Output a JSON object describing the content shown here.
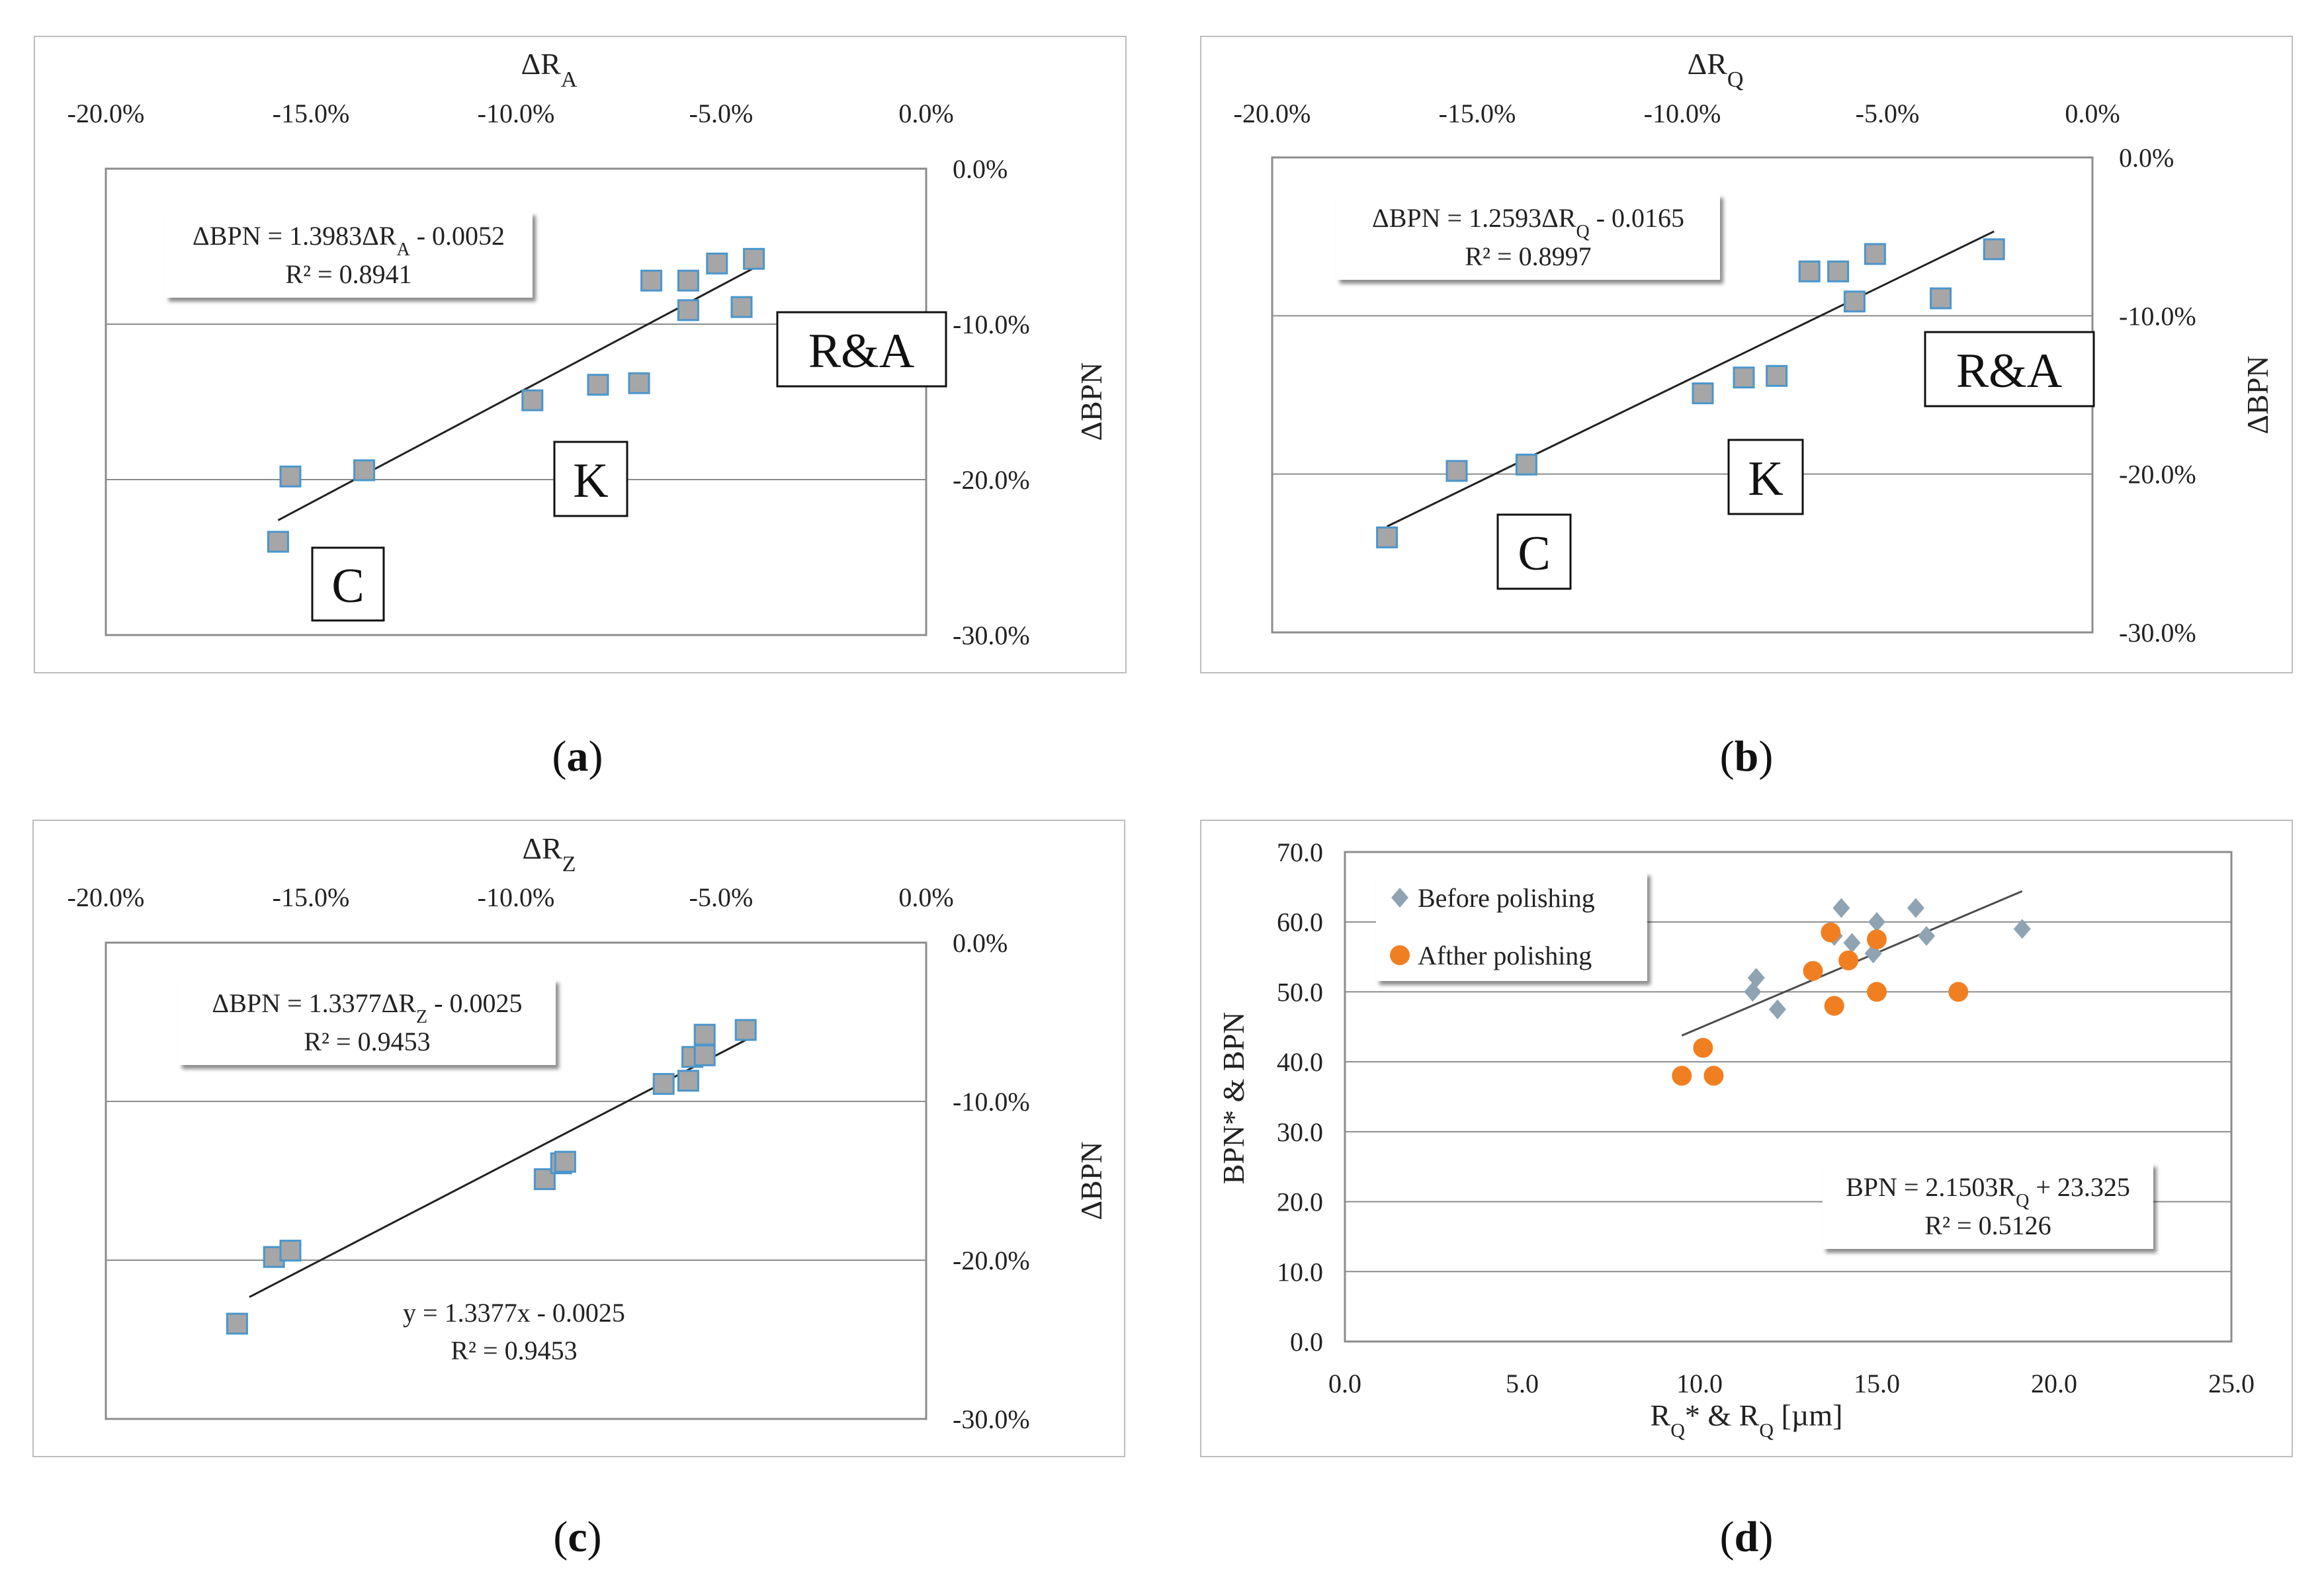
{
  "colors": {
    "marker_fill": "#a6a6a6",
    "marker_stroke": "#4a96cc",
    "before": "#8fa3b2",
    "after": "#f07f22",
    "grid": "#8c8c8c"
  },
  "chart_data": [
    {
      "id": "a",
      "type": "scatter",
      "panel_label": "(a)",
      "panel_letter": "a",
      "x_label": "ΔR",
      "x_sub": "A",
      "ylabel": "ΔBPN",
      "xlim": [
        -0.2,
        0.0
      ],
      "ylim": [
        -0.3,
        0.0
      ],
      "x_ticks": [
        "-20.0%",
        "-15.0%",
        "-10.0%",
        "-5.0%",
        "0.0%"
      ],
      "y_ticks": [
        "0.0%",
        "-10.0%",
        "-20.0%",
        "-30.0%"
      ],
      "points": [
        [
          -0.158,
          -0.24
        ],
        [
          -0.155,
          -0.198
        ],
        [
          -0.137,
          -0.194
        ],
        [
          -0.096,
          -0.149
        ],
        [
          -0.08,
          -0.139
        ],
        [
          -0.07,
          -0.138
        ],
        [
          -0.067,
          -0.072
        ],
        [
          -0.058,
          -0.072
        ],
        [
          -0.058,
          -0.091
        ],
        [
          -0.051,
          -0.061
        ],
        [
          -0.045,
          -0.089
        ],
        [
          -0.042,
          -0.058
        ]
      ],
      "trendline": {
        "x": [
          -0.158,
          -0.042
        ],
        "slope": 1.3983,
        "intercept": -0.0052
      },
      "equations": [
        {
          "line1_pre": "ΔBPN = 1.3983ΔR",
          "line1_sub": "A",
          "line1_post": " - 0.0052",
          "line2": "R² = 0.8941",
          "boxed": true
        }
      ],
      "region_labels": [
        "C",
        "K",
        "R&A"
      ]
    },
    {
      "id": "b",
      "type": "scatter",
      "panel_label": "(b)",
      "panel_letter": "b",
      "x_label": "ΔR",
      "x_sub": "Q",
      "ylabel": "ΔBPN",
      "xlim": [
        -0.2,
        0.0
      ],
      "ylim": [
        -0.3,
        0.0
      ],
      "x_ticks": [
        "-20.0%",
        "-15.0%",
        "-10.0%",
        "-5.0%",
        "0.0%"
      ],
      "y_ticks": [
        "0.0%",
        "-10.0%",
        "-20.0%",
        "-30.0%"
      ],
      "points": [
        [
          -0.172,
          -0.24
        ],
        [
          -0.155,
          -0.198
        ],
        [
          -0.138,
          -0.194
        ],
        [
          -0.095,
          -0.149
        ],
        [
          -0.085,
          -0.139
        ],
        [
          -0.077,
          -0.138
        ],
        [
          -0.069,
          -0.072
        ],
        [
          -0.062,
          -0.072
        ],
        [
          -0.058,
          -0.091
        ],
        [
          -0.053,
          -0.061
        ],
        [
          -0.037,
          -0.089
        ],
        [
          -0.024,
          -0.058
        ]
      ],
      "trendline": {
        "x": [
          -0.172,
          -0.024
        ],
        "slope": 1.2593,
        "intercept": -0.0165
      },
      "equations": [
        {
          "line1_pre": "ΔBPN  = 1.2593ΔR",
          "line1_sub": "Q",
          "line1_post": " - 0.0165",
          "line2": "R² = 0.8997",
          "boxed": true
        }
      ],
      "region_labels": [
        "C",
        "K",
        "R&A"
      ]
    },
    {
      "id": "c",
      "type": "scatter",
      "panel_label": "(c)",
      "panel_letter": "c",
      "x_label": "ΔR",
      "x_sub": "Z",
      "ylabel": "ΔBPN",
      "xlim": [
        -0.2,
        0.0
      ],
      "ylim": [
        -0.3,
        0.0
      ],
      "x_ticks": [
        "-20.0%",
        "-15.0%",
        "-10.0%",
        "-5.0%",
        "0.0%"
      ],
      "y_ticks": [
        "0.0%",
        "-10.0%",
        "-20.0%",
        "-30.0%"
      ],
      "points": [
        [
          -0.168,
          -0.24
        ],
        [
          -0.159,
          -0.198
        ],
        [
          -0.155,
          -0.194
        ],
        [
          -0.093,
          -0.149
        ],
        [
          -0.089,
          -0.139
        ],
        [
          -0.088,
          -0.138
        ],
        [
          -0.064,
          -0.089
        ],
        [
          -0.058,
          -0.087
        ],
        [
          -0.057,
          -0.072
        ],
        [
          -0.054,
          -0.071
        ],
        [
          -0.054,
          -0.058
        ],
        [
          -0.044,
          -0.055
        ]
      ],
      "trendline": {
        "x": [
          -0.165,
          -0.044
        ],
        "slope": 1.3377,
        "intercept": -0.0025
      },
      "equations": [
        {
          "line1_pre": "ΔBPN  = 1.3377ΔR",
          "line1_sub": "Z",
          "line1_post": " - 0.0025",
          "line2": "R² = 0.9453",
          "boxed": true
        },
        {
          "line1_pre": "y = 1.3377x - 0.0025",
          "line1_sub": "",
          "line1_post": "",
          "line2": "R² = 0.9453",
          "boxed": false
        }
      ],
      "region_labels": []
    },
    {
      "id": "d",
      "type": "scatter",
      "panel_label": "(d)",
      "panel_letter": "d",
      "xlabel_pre": "R",
      "xlabel_sub1": "Q",
      "xlabel_mid": "* & R",
      "xlabel_sub2": "Q",
      "xlabel_post": " [µm]",
      "ylabel": "BPN* & BPN",
      "xlim": [
        0,
        25
      ],
      "ylim": [
        0,
        70
      ],
      "x_ticks": [
        "0.0",
        "5.0",
        "10.0",
        "15.0",
        "20.0",
        "25.0"
      ],
      "y_ticks": [
        "70.0",
        "60.0",
        "50.0",
        "40.0",
        "30.0",
        "20.0",
        "10.0",
        "0.0"
      ],
      "series": [
        {
          "name": "Before polishing",
          "marker": "diamond",
          "points": [
            [
              11.5,
              50
            ],
            [
              11.6,
              52
            ],
            [
              12.2,
              47.5
            ],
            [
              13.8,
              58
            ],
            [
              14.0,
              62
            ],
            [
              14.3,
              57
            ],
            [
              14.9,
              55.5
            ],
            [
              15.0,
              60
            ],
            [
              16.1,
              62
            ],
            [
              16.4,
              58
            ],
            [
              19.1,
              59
            ]
          ]
        },
        {
          "name": "Afther polishing",
          "marker": "circle",
          "points": [
            [
              9.5,
              38
            ],
            [
              10.1,
              42
            ],
            [
              10.4,
              38
            ],
            [
              13.2,
              53
            ],
            [
              13.7,
              58.5
            ],
            [
              13.8,
              48
            ],
            [
              14.2,
              54.5
            ],
            [
              15.0,
              57.5
            ],
            [
              15.0,
              50
            ],
            [
              17.3,
              50
            ]
          ]
        }
      ],
      "trendline": {
        "x": [
          9.5,
          19.1
        ],
        "slope": 2.1503,
        "intercept": 23.325
      },
      "equations": [
        {
          "line1_pre": "BPN = 2.1503R",
          "line1_sub": "Q",
          "line1_post": " + 23.325",
          "line2": "R² = 0.5126",
          "boxed": true
        }
      ]
    }
  ]
}
